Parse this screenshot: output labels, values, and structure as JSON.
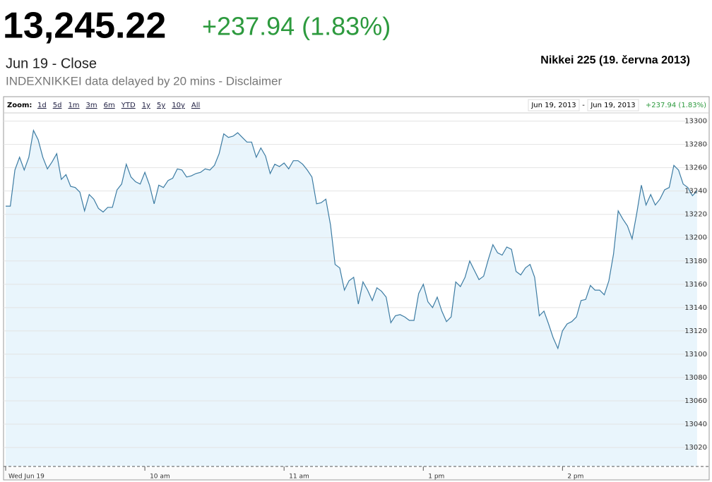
{
  "header": {
    "price": "13,245.22",
    "change": "+237.94 (1.83%)",
    "close_label": "Jun 19 - Close",
    "delay_note": "INDEXNIKKEI data delayed by 20 mins - Disclaimer",
    "title": "Nikkei 225 (19. června 2013)"
  },
  "toolbar": {
    "zoom_label": "Zoom:",
    "zoom_options": [
      "1d",
      "5d",
      "1m",
      "3m",
      "6m",
      "YTD",
      "1y",
      "5y",
      "10y",
      "All"
    ],
    "range_start": "Jun 19, 2013",
    "range_separator": "-",
    "range_end": "Jun 19, 2013",
    "range_change": "+237.94 (1.83%)"
  },
  "chart_data": {
    "type": "area",
    "color": "#3d7ca3",
    "fill": "#e9f5fc",
    "grid": true,
    "values": [
      13227,
      13227,
      13258,
      13269,
      13258,
      13269,
      13292,
      13284,
      13269,
      13259,
      13265,
      13272,
      13250,
      13254,
      13244,
      13243,
      13239,
      13223,
      13237,
      13233,
      13225,
      13222,
      13226,
      13226,
      13241,
      13246,
      13263,
      13252,
      13248,
      13246,
      13256,
      13245,
      13229,
      13245,
      13243,
      13249,
      13251,
      13259,
      13258,
      13252,
      13253,
      13255,
      13256,
      13259,
      13258,
      13262,
      13272,
      13289,
      13286,
      13287,
      13290,
      13286,
      13282,
      13282,
      13269,
      13277,
      13270,
      13255,
      13263,
      13261,
      13264,
      13259,
      13266,
      13266,
      13263,
      13258,
      13252,
      13229,
      13230,
      13233,
      13211,
      13177,
      13174,
      13155,
      13163,
      13166,
      13143,
      13162,
      13155,
      13146,
      13157,
      13154,
      13149,
      13127,
      13133,
      13134,
      13132,
      13129,
      13129,
      13152,
      13160,
      13145,
      13140,
      13149,
      13137,
      13128,
      13132,
      13162,
      13158,
      13166,
      13180,
      13172,
      13164,
      13167,
      13181,
      13194,
      13187,
      13185,
      13192,
      13190,
      13171,
      13168,
      13174,
      13177,
      13166,
      13133,
      13137,
      13126,
      13114,
      13105,
      13120,
      13126,
      13128,
      13132,
      13146,
      13147,
      13159,
      13155,
      13155,
      13151,
      13163,
      13186,
      13223,
      13216,
      13210,
      13199,
      13221,
      13245,
      13228,
      13237,
      13228,
      13233,
      13241,
      13243,
      13262,
      13258,
      13246,
      13243,
      13236,
      13240
    ],
    "xlim": [
      0,
      151
    ],
    "xticks": [
      {
        "value": 0,
        "label": "Wed Jun 19"
      },
      {
        "value": 30,
        "label": "10 am"
      },
      {
        "value": 60,
        "label": "11 am"
      },
      {
        "value": 90,
        "label": "1 pm"
      },
      {
        "value": 120,
        "label": "2 pm"
      }
    ],
    "ylim": [
      13004,
      13307
    ],
    "yticks": [
      13020,
      13040,
      13060,
      13080,
      13100,
      13120,
      13140,
      13160,
      13180,
      13200,
      13220,
      13240,
      13260,
      13280,
      13300
    ]
  }
}
